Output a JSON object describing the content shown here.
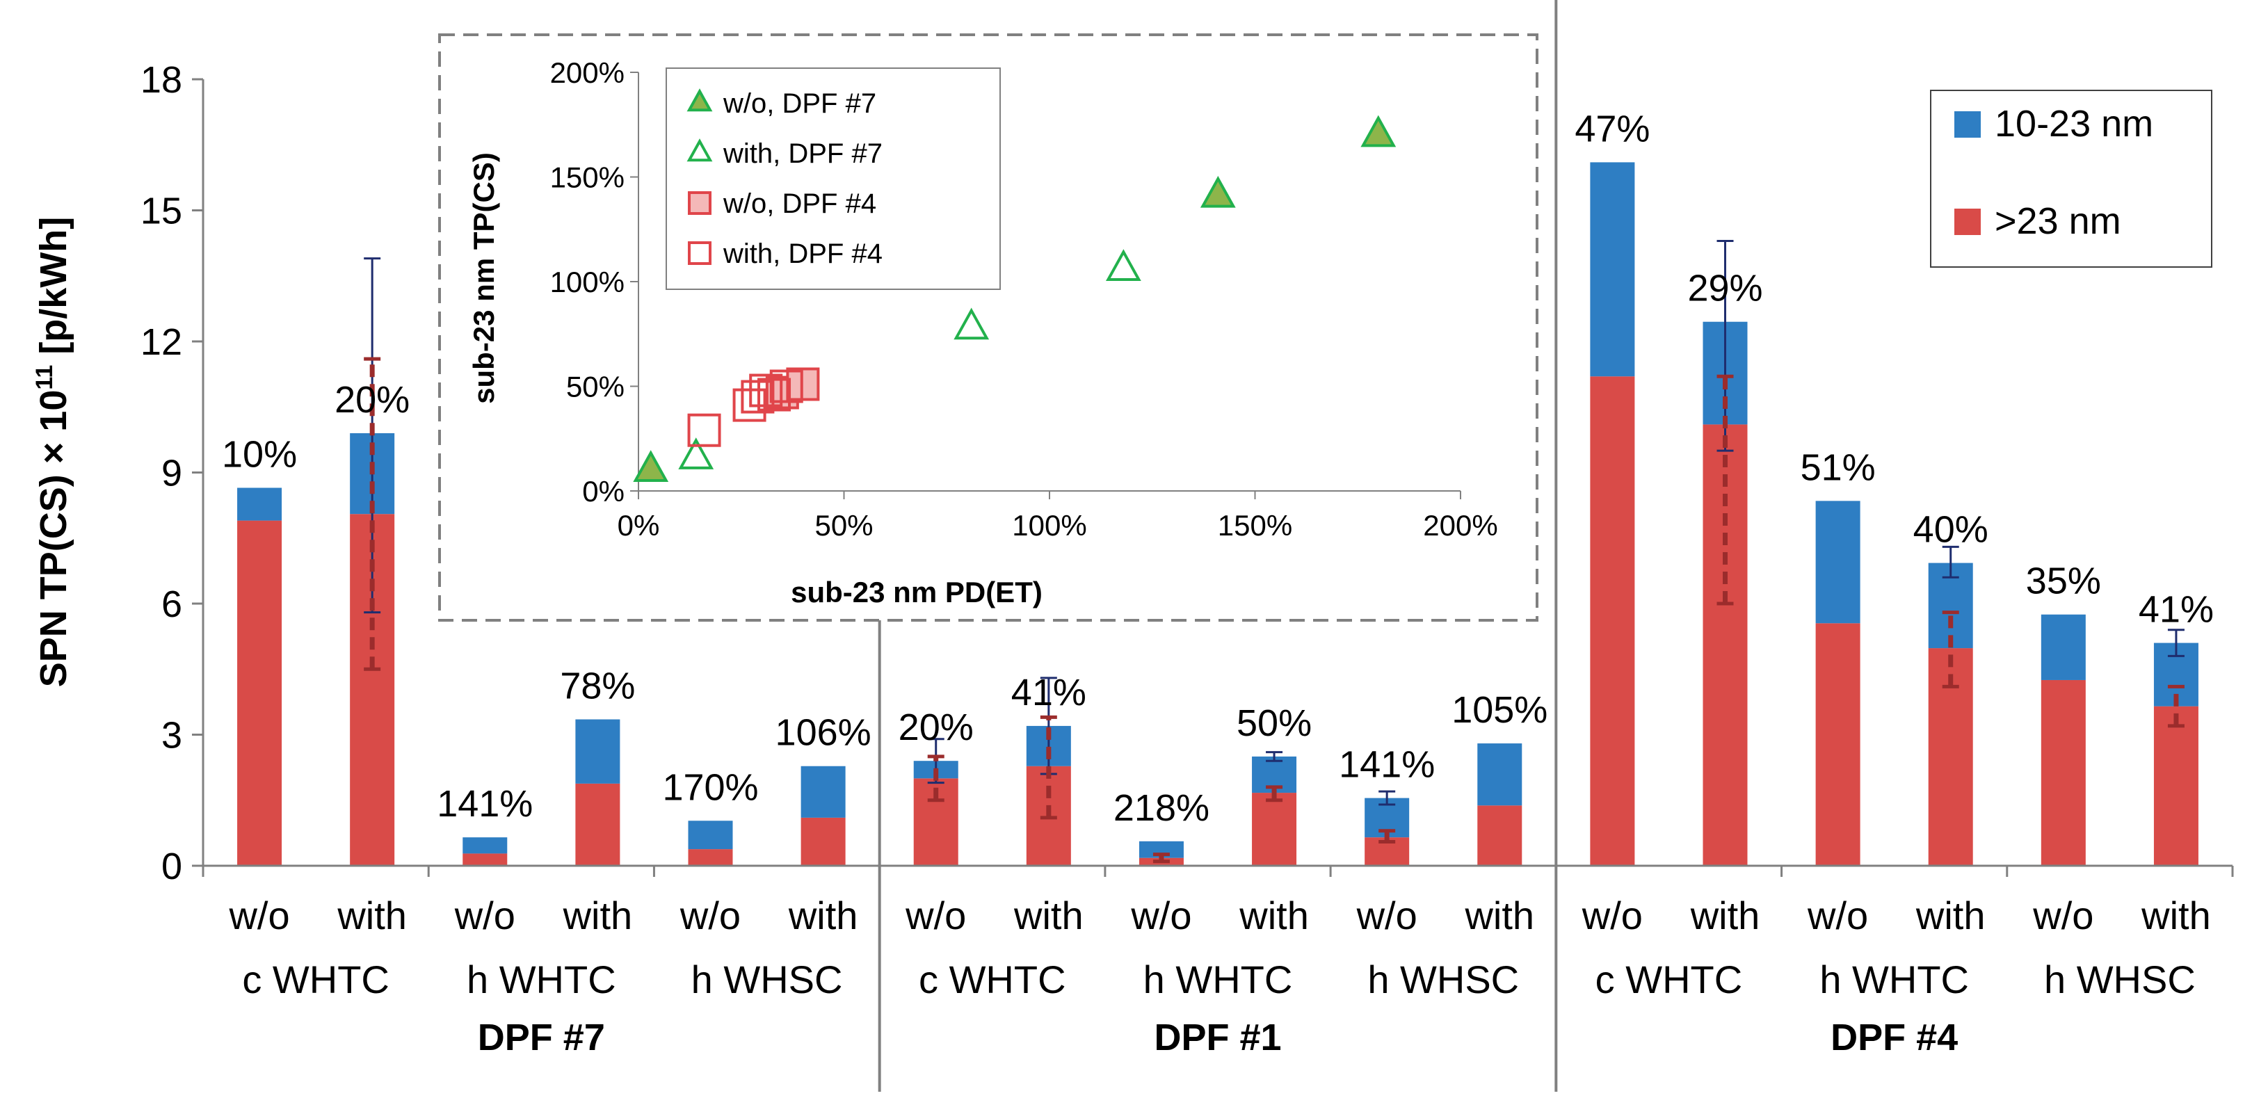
{
  "chart_data": {
    "type": "bar",
    "stacked": true,
    "y_axis": {
      "label_prefix": "SPN TP(CS) × 10",
      "label_exp": "11",
      "label_suffix": "  [p/kWh]",
      "ylim": [
        0,
        18
      ],
      "ticks": [
        0,
        3,
        6,
        9,
        12,
        15,
        18
      ]
    },
    "legend": [
      {
        "name": "10-23 nm",
        "color": "#2E7EC3"
      },
      {
        "name": ">23 nm",
        "color": "#D94B48"
      }
    ],
    "groups": [
      {
        "name": "DPF #7",
        "cycles": [
          "c WHTC",
          "h WHTC",
          "h WHSC"
        ]
      },
      {
        "name": "DPF #1",
        "cycles": [
          "c WHTC",
          "h WHTC",
          "h WHSC"
        ]
      },
      {
        "name": "DPF #4",
        "cycles": [
          "c WHTC",
          "h WHTC",
          "h WHSC"
        ]
      }
    ],
    "bars": [
      {
        "label": "w/o",
        "above23": 7.9,
        "sub23": 0.75,
        "pct": "10%"
      },
      {
        "label": "with",
        "above23": 8.05,
        "sub23": 1.85,
        "pct": "20%",
        "err_total": [
          5.8,
          13.9
        ],
        "err_above": [
          4.5,
          11.6
        ]
      },
      {
        "label": "w/o",
        "above23": 0.28,
        "sub23": 0.37,
        "pct": "141%"
      },
      {
        "label": "with",
        "above23": 1.88,
        "sub23": 1.47,
        "pct": "78%"
      },
      {
        "label": "w/o",
        "above23": 0.38,
        "sub23": 0.65,
        "pct": "170%"
      },
      {
        "label": "with",
        "above23": 1.1,
        "sub23": 1.18,
        "pct": "106%"
      },
      {
        "label": "w/o",
        "above23": 2.0,
        "sub23": 0.4,
        "pct": "20%",
        "err_total": [
          1.9,
          2.9
        ],
        "err_above": [
          1.5,
          2.5
        ]
      },
      {
        "label": "with",
        "above23": 2.28,
        "sub23": 0.92,
        "pct": "41%",
        "err_total": [
          2.1,
          4.3
        ],
        "err_above": [
          1.1,
          3.4
        ]
      },
      {
        "label": "w/o",
        "above23": 0.18,
        "sub23": 0.38,
        "pct": "218%",
        "err_above": [
          0.1,
          0.26
        ]
      },
      {
        "label": "with",
        "above23": 1.67,
        "sub23": 0.83,
        "pct": "50%",
        "err_total": [
          2.4,
          2.6
        ],
        "err_above": [
          1.5,
          1.8
        ]
      },
      {
        "label": "w/o",
        "above23": 0.65,
        "sub23": 0.9,
        "pct": "141%",
        "err_total": [
          1.4,
          1.7
        ],
        "err_above": [
          0.55,
          0.8
        ]
      },
      {
        "label": "with",
        "above23": 1.38,
        "sub23": 1.42,
        "pct": "105%"
      },
      {
        "label": "w/o",
        "above23": 11.2,
        "sub23": 4.9,
        "pct": "47%"
      },
      {
        "label": "with",
        "above23": 10.1,
        "sub23": 2.35,
        "pct": "29%",
        "err_total": [
          9.5,
          14.3
        ],
        "err_above": [
          6.0,
          11.2
        ]
      },
      {
        "label": "w/o",
        "above23": 5.55,
        "sub23": 2.8,
        "pct": "51%"
      },
      {
        "label": "with",
        "above23": 4.98,
        "sub23": 1.95,
        "pct": "40%",
        "err_total": [
          6.6,
          7.3
        ],
        "err_above": [
          4.1,
          5.8
        ]
      },
      {
        "label": "w/o",
        "above23": 4.25,
        "sub23": 1.5,
        "pct": "35%"
      },
      {
        "label": "with",
        "above23": 3.65,
        "sub23": 1.45,
        "pct": "41%",
        "err_total": [
          4.8,
          5.4
        ],
        "err_above": [
          3.2,
          4.1
        ]
      }
    ],
    "inset": {
      "type": "scatter",
      "xlabel": "sub-23 nm PD(ET)",
      "ylabel": "sub-23 nm TP(CS)",
      "xlim": [
        0,
        200
      ],
      "ylim": [
        0,
        200
      ],
      "xticks": [
        "0%",
        "50%",
        "100%",
        "150%",
        "200%"
      ],
      "yticks": [
        "0%",
        "50%",
        "100%",
        "150%",
        "200%"
      ],
      "series": [
        {
          "name": "w/o, DPF #7",
          "marker": "triangle",
          "fill": "#8DB54A",
          "stroke": "#22B14C",
          "points": [
            [
              3,
              10
            ],
            [
              141,
              141
            ],
            [
              180,
              170
            ]
          ]
        },
        {
          "name": "with, DPF #7",
          "marker": "triangle",
          "fill": "none",
          "stroke": "#22B14C",
          "points": [
            [
              14,
              16
            ],
            [
              81,
              78
            ],
            [
              118,
              106
            ]
          ]
        },
        {
          "name": "w/o, DPF #4",
          "marker": "square",
          "fill": "#F4B8B8",
          "stroke": "#E0454A",
          "points": [
            [
              35,
              47
            ],
            [
              40,
              51
            ]
          ]
        },
        {
          "name": "with, DPF #4",
          "marker": "square",
          "fill": "none",
          "stroke": "#E0454A",
          "points": [
            [
              16,
              29
            ],
            [
              27,
              41
            ],
            [
              29,
              45
            ],
            [
              33,
              46
            ],
            [
              31,
              48
            ],
            [
              36,
              50
            ]
          ]
        }
      ]
    }
  }
}
